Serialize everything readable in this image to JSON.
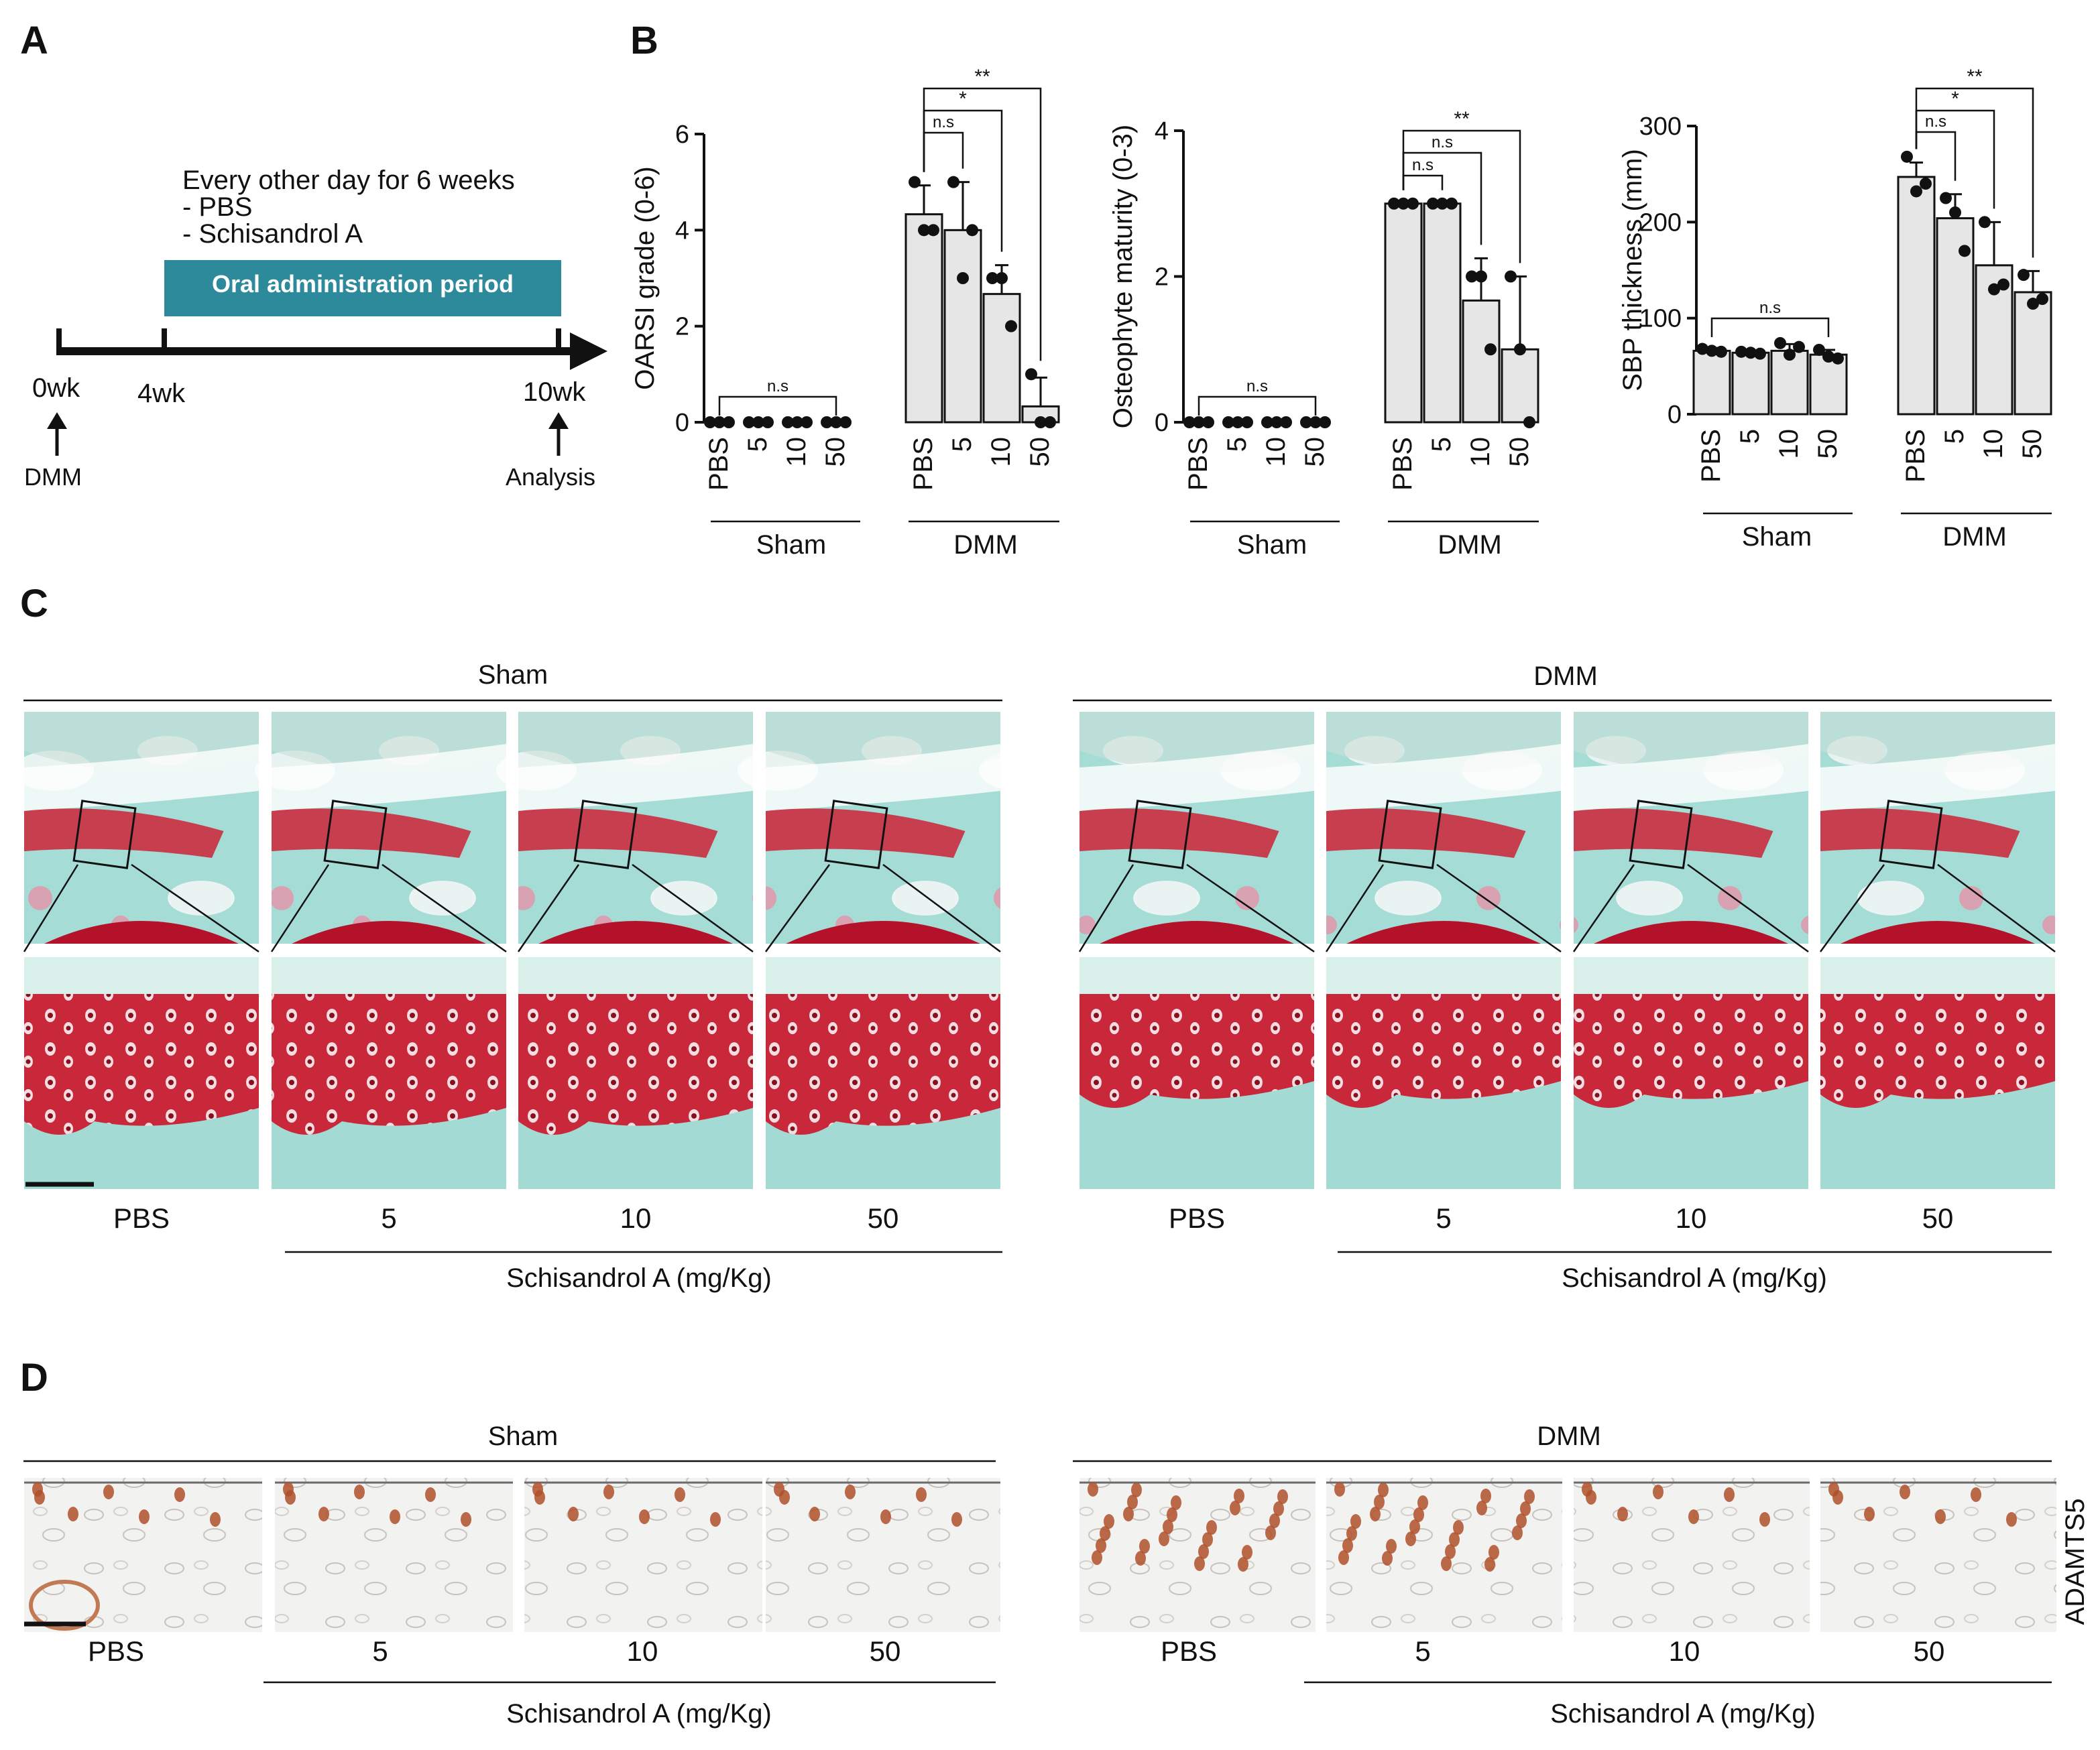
{
  "panels": {
    "a": "A",
    "b": "B",
    "c": "C",
    "d": "D"
  },
  "panelA": {
    "schedule_title": "Every other day for 6 weeks",
    "treatment_1": "- PBS",
    "treatment_2": "- Schisandrol A",
    "period_label": "Oral administration period",
    "tp_0": "0wk",
    "tp_4": "4wk",
    "tp_10": "10wk",
    "event_start": "DMM",
    "event_end": "Analysis",
    "period_color": "#2c8a9b"
  },
  "groups": {
    "sham": "Sham",
    "dmm": "DMM"
  },
  "doses": [
    "PBS",
    "5",
    "10",
    "50"
  ],
  "sig": {
    "ns": "n.s",
    "one": "*",
    "two": "**"
  },
  "chart_data": [
    {
      "type": "bar",
      "title": "",
      "ylabel": "OARSI  grade (0-6)",
      "ylim": [
        0,
        6
      ],
      "yticks": [
        "0",
        "2",
        "4",
        "6"
      ],
      "categories": [
        "Sham PBS",
        "Sham 5",
        "Sham 10",
        "Sham 50",
        "DMM PBS",
        "DMM 5",
        "DMM 10",
        "DMM 50"
      ],
      "values": [
        0,
        0,
        0,
        0,
        4.33,
        4.0,
        2.67,
        0.33
      ],
      "errors": [
        0,
        0,
        0,
        0,
        0.6,
        1.0,
        0.6,
        0.6
      ],
      "points": [
        [
          0,
          0,
          0
        ],
        [
          0,
          0,
          0
        ],
        [
          0,
          0,
          0
        ],
        [
          0,
          0,
          0
        ],
        [
          5,
          4,
          4
        ],
        [
          5,
          3,
          4
        ],
        [
          3,
          3,
          2
        ],
        [
          1,
          0,
          0
        ]
      ]
    },
    {
      "type": "bar",
      "title": "",
      "ylabel": "Osteophyte maturity (0-3)",
      "ylim": [
        0,
        4
      ],
      "yticks": [
        "0",
        "2",
        "4"
      ],
      "categories": [
        "Sham PBS",
        "Sham 5",
        "Sham 10",
        "Sham 50",
        "DMM PBS",
        "DMM 5",
        "DMM 10",
        "DMM 50"
      ],
      "values": [
        0,
        0,
        0,
        0,
        3,
        3,
        1.67,
        1.0
      ],
      "errors": [
        0,
        0,
        0,
        0,
        0,
        0,
        0.58,
        1.0
      ],
      "points": [
        [
          0,
          0,
          0
        ],
        [
          0,
          0,
          0
        ],
        [
          0,
          0,
          0
        ],
        [
          0,
          0,
          0
        ],
        [
          3,
          3,
          3
        ],
        [
          3,
          3,
          3
        ],
        [
          2,
          2,
          1
        ],
        [
          2,
          1,
          0
        ]
      ]
    },
    {
      "type": "bar",
      "title": "",
      "ylabel": "SBP thickness (mm)",
      "ylim": [
        0,
        300
      ],
      "yticks": [
        "0",
        "100",
        "200",
        "300"
      ],
      "categories": [
        "Sham PBS",
        "Sham 5",
        "Sham 10",
        "Sham 50",
        "DMM PBS",
        "DMM 5",
        "DMM 10",
        "DMM 50"
      ],
      "values": [
        66,
        64,
        66,
        62,
        247,
        204,
        155,
        127
      ],
      "errors": [
        3,
        2,
        7,
        5,
        15,
        25,
        45,
        22
      ],
      "points": [
        [
          68,
          66,
          65
        ],
        [
          65,
          64,
          63
        ],
        [
          74,
          62,
          70
        ],
        [
          67,
          60,
          58
        ],
        [
          268,
          232,
          240
        ],
        [
          225,
          210,
          170
        ],
        [
          200,
          130,
          135
        ],
        [
          145,
          115,
          120
        ]
      ]
    }
  ],
  "panelC": {
    "dose_axis_label": "Schisandrol A (mg/Kg)"
  },
  "panelD": {
    "dose_axis_label": "Schisandrol A (mg/Kg)",
    "stain_label": "ADAMTS5"
  },
  "colors": {
    "cartilage_red": "#c0182a",
    "bone_teal": "#8ed3cf",
    "ihc_brown": "#b0502a"
  }
}
